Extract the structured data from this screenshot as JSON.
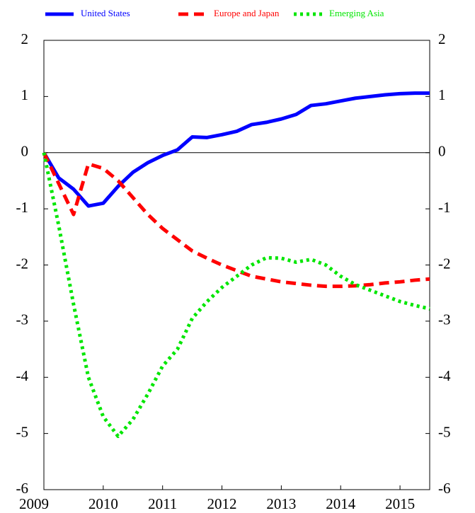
{
  "chart_data": {
    "type": "line",
    "x": [
      2009,
      2009.25,
      2009.5,
      2009.75,
      2010,
      2010.25,
      2010.5,
      2010.75,
      2011,
      2011.25,
      2011.5,
      2011.75,
      2012,
      2012.25,
      2012.5,
      2012.75,
      2013,
      2013.25,
      2013.5,
      2013.75,
      2014,
      2014.25,
      2014.5,
      2014.75,
      2015,
      2015.25,
      2015.5
    ],
    "series": [
      {
        "name": "United States",
        "color": "#0000ff",
        "style": "solid",
        "values": [
          0,
          -0.45,
          -0.65,
          -0.95,
          -0.9,
          -0.6,
          -0.35,
          -0.18,
          -0.05,
          0.05,
          0.28,
          0.27,
          0.32,
          0.38,
          0.5,
          0.54,
          0.6,
          0.68,
          0.84,
          0.87,
          0.92,
          0.97,
          1.0,
          1.03,
          1.05,
          1.06,
          1.06
        ]
      },
      {
        "name": "Europe and Japan",
        "color": "#ff0000",
        "style": "dashed",
        "values": [
          0,
          -0.55,
          -1.1,
          -0.2,
          -0.28,
          -0.5,
          -0.8,
          -1.1,
          -1.35,
          -1.55,
          -1.75,
          -1.88,
          -2.0,
          -2.1,
          -2.2,
          -2.25,
          -2.3,
          -2.33,
          -2.36,
          -2.38,
          -2.38,
          -2.37,
          -2.35,
          -2.32,
          -2.3,
          -2.27,
          -2.25
        ]
      },
      {
        "name": "Emerging Asia",
        "color": "#00e600",
        "style": "dotted",
        "values": [
          0,
          -1.3,
          -2.7,
          -4.0,
          -4.7,
          -5.05,
          -4.75,
          -4.3,
          -3.8,
          -3.5,
          -2.95,
          -2.65,
          -2.4,
          -2.2,
          -2.0,
          -1.87,
          -1.88,
          -1.95,
          -1.9,
          -2.0,
          -2.2,
          -2.35,
          -2.45,
          -2.55,
          -2.65,
          -2.72,
          -2.78
        ]
      }
    ],
    "xlim": [
      2009,
      2015.5
    ],
    "xticks": [
      2009,
      2010,
      2011,
      2012,
      2013,
      2014,
      2015
    ],
    "ylim": [
      -6,
      2
    ],
    "yticks": [
      -6,
      -5,
      -4,
      -3,
      -2,
      -1,
      0,
      1,
      2
    ],
    "y2lim": [
      -6,
      2
    ],
    "y2ticks": [
      -6,
      -5,
      -4,
      -3,
      -2,
      -1,
      0,
      1,
      2
    ],
    "zero_line": true
  }
}
